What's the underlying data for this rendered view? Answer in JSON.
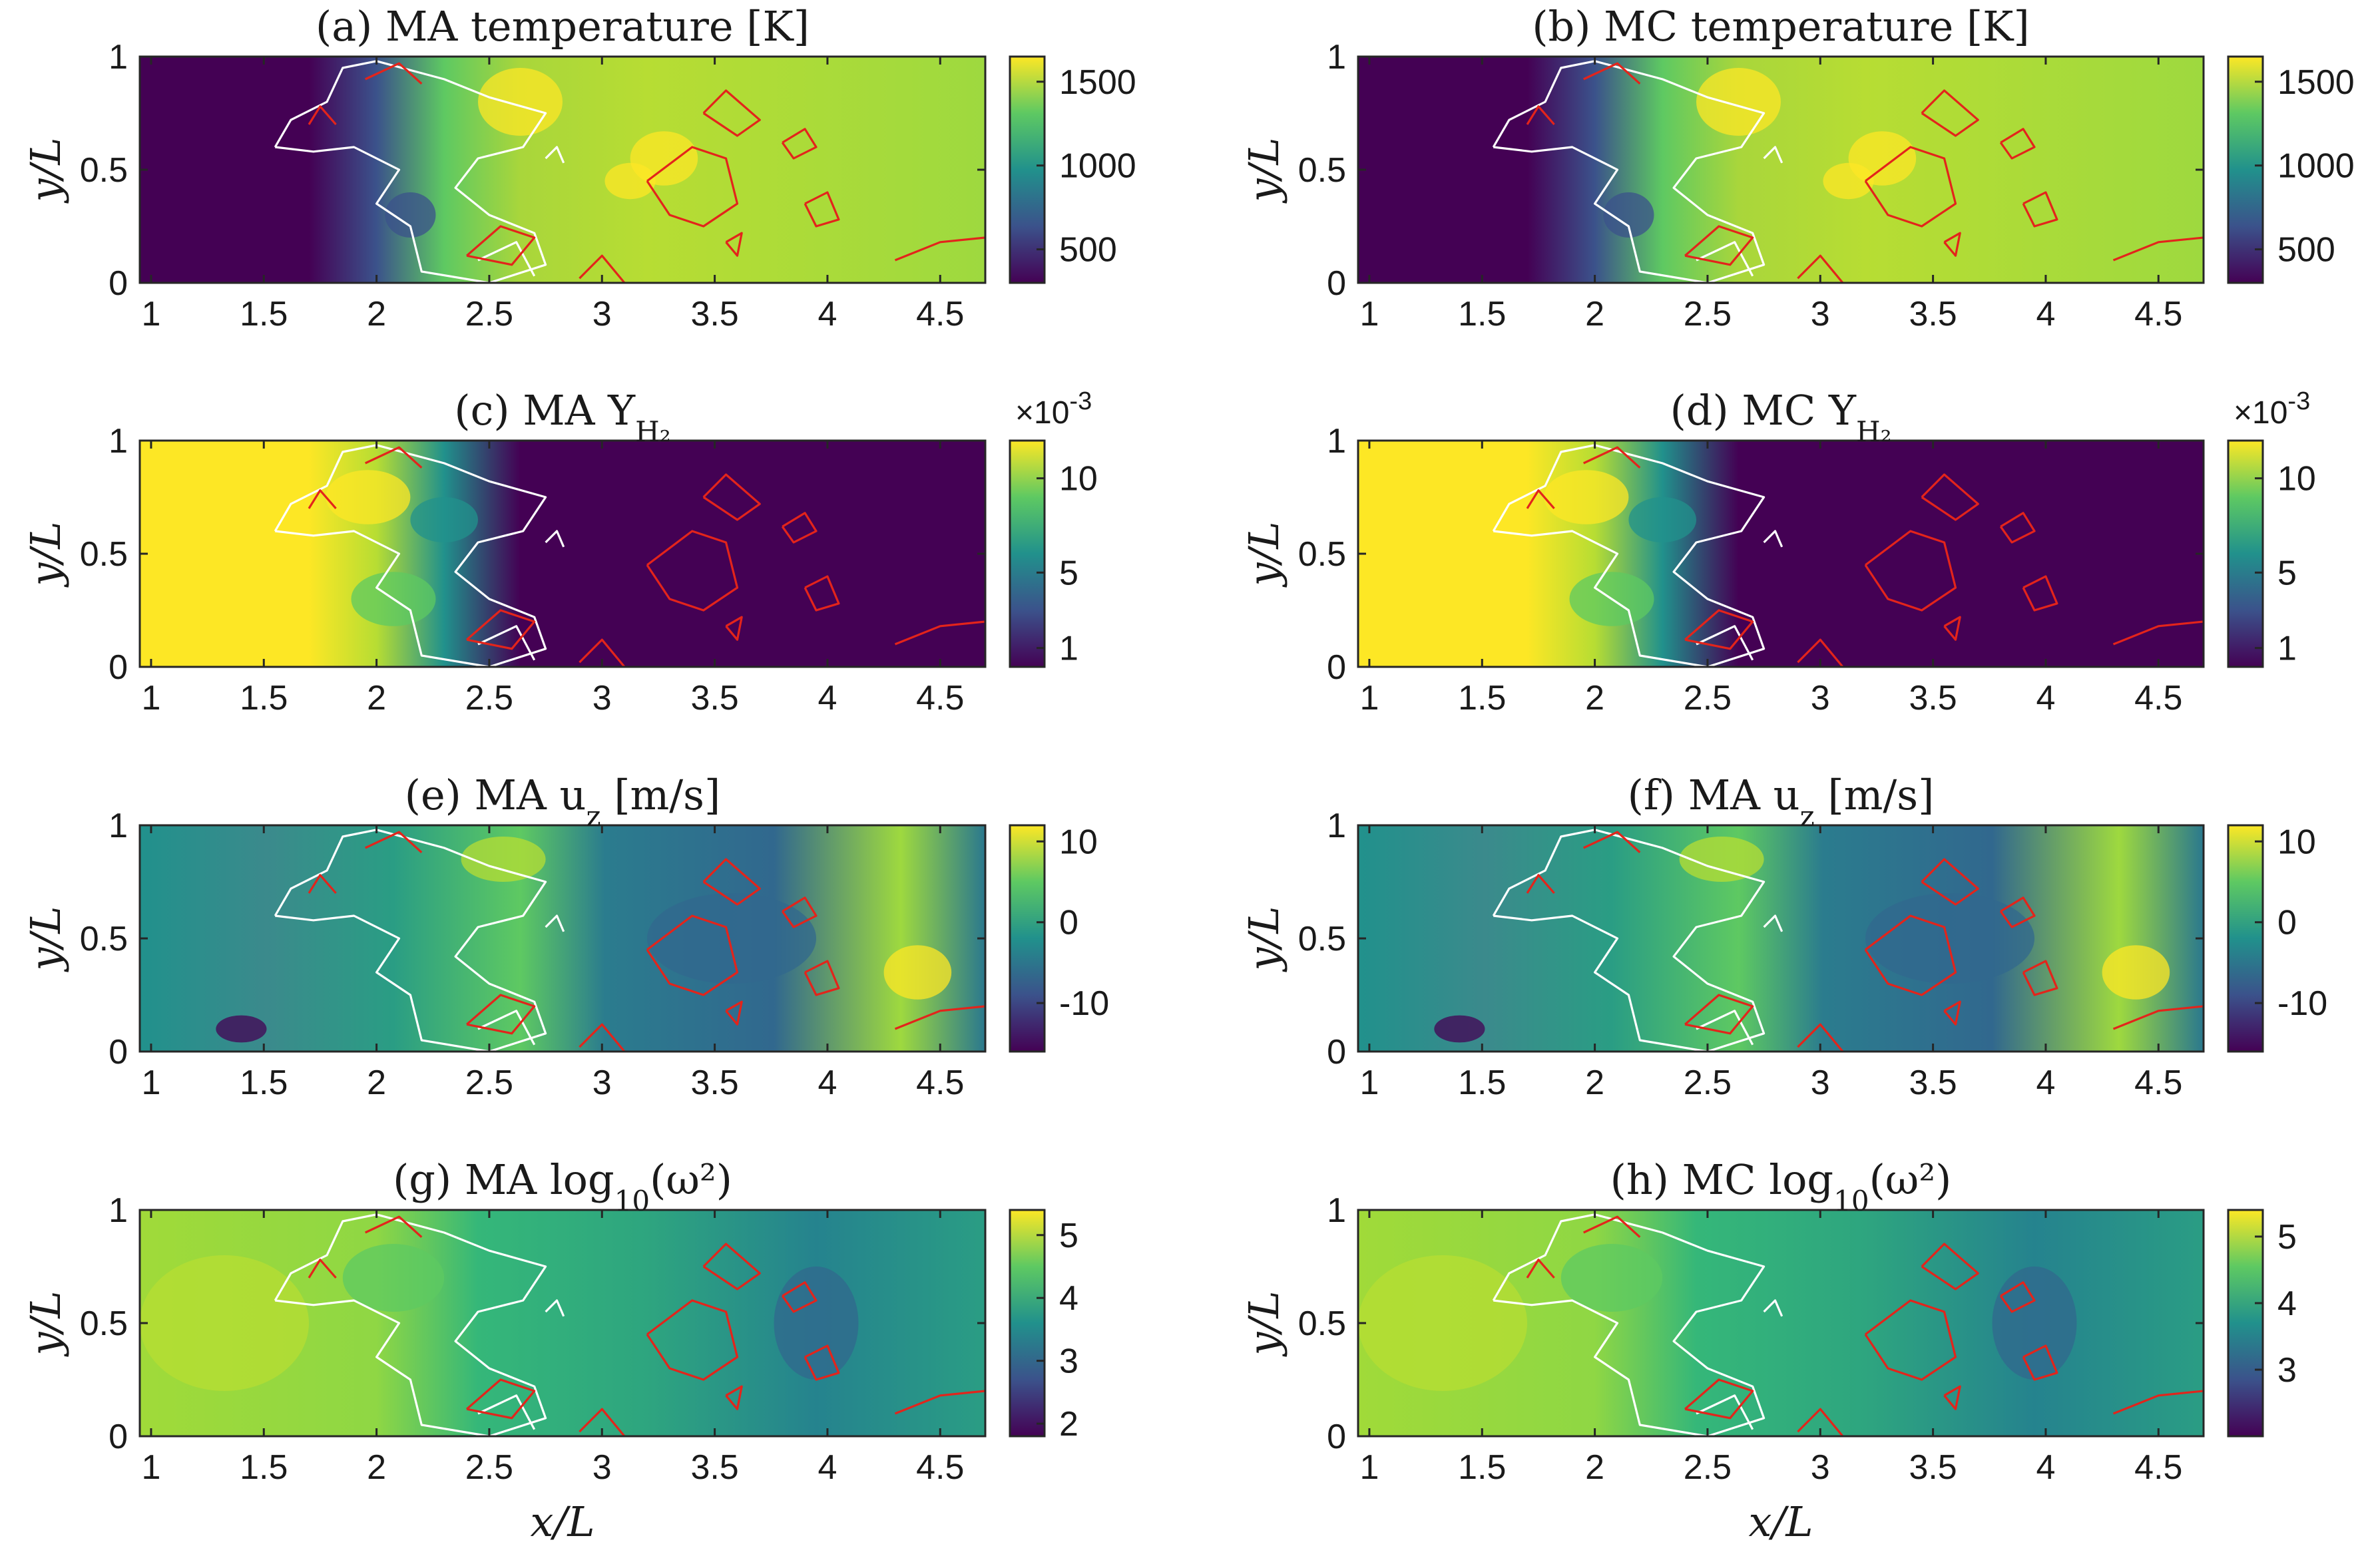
{
  "chart_data": [
    {
      "type": "heatmap",
      "panel": "a",
      "title": "(a) MA temperature [K]",
      "field": "temperature",
      "xlabel": "",
      "ylabel": "y/L",
      "xlim": [
        0.95,
        4.7
      ],
      "ylim": [
        0,
        1
      ],
      "xticks": [
        "1",
        "1.5",
        "2",
        "2.5",
        "3",
        "3.5",
        "4",
        "4.5"
      ],
      "yticks": [
        "0",
        "0.5",
        "1"
      ],
      "colorbar": {
        "ticks": [
          "500",
          "1000",
          "1500"
        ],
        "tick_values": [
          500,
          1000,
          1500
        ],
        "range": [
          300,
          1650
        ],
        "multiplier": ""
      },
      "colormap": [
        "#440154",
        "#3b528b",
        "#21918c",
        "#5ec962",
        "#fde725"
      ]
    },
    {
      "type": "heatmap",
      "panel": "b",
      "title": "(b) MC temperature [K]",
      "field": "temperature",
      "xlabel": "",
      "ylabel": "y/L",
      "xlim": [
        0.95,
        4.7
      ],
      "ylim": [
        0,
        1
      ],
      "xticks": [
        "1",
        "1.5",
        "2",
        "2.5",
        "3",
        "3.5",
        "4",
        "4.5"
      ],
      "yticks": [
        "0",
        "0.5",
        "1"
      ],
      "colorbar": {
        "ticks": [
          "500",
          "1000",
          "1500"
        ],
        "tick_values": [
          500,
          1000,
          1500
        ],
        "range": [
          300,
          1650
        ],
        "multiplier": ""
      },
      "colormap": [
        "#440154",
        "#3b528b",
        "#21918c",
        "#5ec962",
        "#fde725"
      ]
    },
    {
      "type": "heatmap",
      "panel": "c",
      "title": "(c) MA Y",
      "title_sub": "H₂",
      "field": "Y_H2",
      "xlabel": "",
      "ylabel": "y/L",
      "xlim": [
        0.95,
        4.7
      ],
      "ylim": [
        0,
        1
      ],
      "xticks": [
        "1",
        "1.5",
        "2",
        "2.5",
        "3",
        "3.5",
        "4",
        "4.5"
      ],
      "yticks": [
        "0",
        "0.5",
        "1"
      ],
      "colorbar": {
        "ticks": [
          "1",
          "5",
          "10"
        ],
        "tick_values": [
          1,
          5,
          10
        ],
        "range": [
          0,
          12
        ],
        "multiplier": "×10-3"
      },
      "colormap": [
        "#440154",
        "#3b528b",
        "#21918c",
        "#5ec962",
        "#fde725"
      ]
    },
    {
      "type": "heatmap",
      "panel": "d",
      "title": "(d) MC Y",
      "title_sub": "H₂",
      "field": "Y_H2",
      "xlabel": "",
      "ylabel": "y/L",
      "xlim": [
        0.95,
        4.7
      ],
      "ylim": [
        0,
        1
      ],
      "xticks": [
        "1",
        "1.5",
        "2",
        "2.5",
        "3",
        "3.5",
        "4",
        "4.5"
      ],
      "yticks": [
        "0",
        "0.5",
        "1"
      ],
      "colorbar": {
        "ticks": [
          "1",
          "5",
          "10"
        ],
        "tick_values": [
          1,
          5,
          10
        ],
        "range": [
          0,
          12
        ],
        "multiplier": "×10-3"
      },
      "colormap": [
        "#440154",
        "#3b528b",
        "#21918c",
        "#5ec962",
        "#fde725"
      ]
    },
    {
      "type": "heatmap",
      "panel": "e",
      "title": "(e) MA u",
      "title_sub": "z",
      "title_tail": " [m/s]",
      "field": "u_z",
      "xlabel": "",
      "ylabel": "y/L",
      "xlim": [
        0.95,
        4.7
      ],
      "ylim": [
        0,
        1
      ],
      "xticks": [
        "1",
        "1.5",
        "2",
        "2.5",
        "3",
        "3.5",
        "4",
        "4.5"
      ],
      "yticks": [
        "0",
        "0.5",
        "1"
      ],
      "colorbar": {
        "ticks": [
          "-10",
          "0",
          "10"
        ],
        "tick_values": [
          -10,
          0,
          10
        ],
        "range": [
          -16,
          12
        ],
        "multiplier": ""
      },
      "colormap": [
        "#440154",
        "#3b528b",
        "#21918c",
        "#5ec962",
        "#fde725"
      ]
    },
    {
      "type": "heatmap",
      "panel": "f",
      "title": "(f) MA u",
      "title_sub": "z",
      "title_tail": " [m/s]",
      "field": "u_z",
      "xlabel": "",
      "ylabel": "y/L",
      "xlim": [
        0.95,
        4.7
      ],
      "ylim": [
        0,
        1
      ],
      "xticks": [
        "1",
        "1.5",
        "2",
        "2.5",
        "3",
        "3.5",
        "4",
        "4.5"
      ],
      "yticks": [
        "0",
        "0.5",
        "1"
      ],
      "colorbar": {
        "ticks": [
          "-10",
          "0",
          "10"
        ],
        "tick_values": [
          -10,
          0,
          10
        ],
        "range": [
          -16,
          12
        ],
        "multiplier": ""
      },
      "colormap": [
        "#440154",
        "#3b528b",
        "#21918c",
        "#5ec962",
        "#fde725"
      ]
    },
    {
      "type": "heatmap",
      "panel": "g",
      "title": "(g) MA log",
      "title_sub": "10",
      "title_tail": "(ω²)",
      "field": "log10_vorticity_sq",
      "xlabel": "x/L",
      "ylabel": "y/L",
      "xlim": [
        0.95,
        4.7
      ],
      "ylim": [
        0,
        1
      ],
      "xticks": [
        "1",
        "1.5",
        "2",
        "2.5",
        "3",
        "3.5",
        "4",
        "4.5"
      ],
      "yticks": [
        "0",
        "0.5",
        "1"
      ],
      "colorbar": {
        "ticks": [
          "2",
          "3",
          "4",
          "5"
        ],
        "tick_values": [
          2,
          3,
          4,
          5
        ],
        "range": [
          1.8,
          5.4
        ],
        "multiplier": ""
      },
      "colormap": [
        "#440154",
        "#3b528b",
        "#21918c",
        "#5ec962",
        "#fde725"
      ]
    },
    {
      "type": "heatmap",
      "panel": "h",
      "title": "(h) MC log",
      "title_sub": "10",
      "title_tail": "(ω²)",
      "field": "log10_vorticity_sq",
      "xlabel": "x/L",
      "ylabel": "y/L",
      "xlim": [
        0.95,
        4.7
      ],
      "ylim": [
        0,
        1
      ],
      "xticks": [
        "1",
        "1.5",
        "2",
        "2.5",
        "3",
        "3.5",
        "4",
        "4.5"
      ],
      "yticks": [
        "0",
        "0.5",
        "1"
      ],
      "colorbar": {
        "ticks": [
          "3",
          "4",
          "5"
        ],
        "tick_values": [
          3,
          4,
          5
        ],
        "range": [
          2,
          5.4
        ],
        "multiplier": ""
      },
      "colormap": [
        "#440154",
        "#3b528b",
        "#21918c",
        "#5ec962",
        "#fde725"
      ]
    }
  ],
  "contours": {
    "white": [
      [
        [
          1.55,
          0.6
        ],
        [
          1.62,
          0.72
        ],
        [
          1.78,
          0.8
        ],
        [
          1.85,
          0.95
        ],
        [
          2.0,
          0.98
        ],
        [
          2.3,
          0.9
        ],
        [
          2.5,
          0.82
        ],
        [
          2.75,
          0.75
        ],
        [
          2.65,
          0.6
        ],
        [
          2.45,
          0.55
        ],
        [
          2.35,
          0.42
        ],
        [
          2.5,
          0.3
        ],
        [
          2.7,
          0.22
        ],
        [
          2.75,
          0.08
        ],
        [
          2.5,
          0.0
        ],
        [
          2.2,
          0.05
        ],
        [
          2.15,
          0.25
        ],
        [
          2.0,
          0.35
        ],
        [
          2.1,
          0.5
        ],
        [
          1.9,
          0.6
        ],
        [
          1.72,
          0.58
        ],
        [
          1.55,
          0.6
        ]
      ],
      [
        [
          2.45,
          0.1
        ],
        [
          2.62,
          0.18
        ],
        [
          2.7,
          0.03
        ]
      ],
      [
        [
          2.75,
          0.55
        ],
        [
          2.8,
          0.6
        ],
        [
          2.83,
          0.53
        ]
      ]
    ],
    "red": [
      [
        [
          3.2,
          0.45
        ],
        [
          3.4,
          0.6
        ],
        [
          3.55,
          0.55
        ],
        [
          3.6,
          0.35
        ],
        [
          3.45,
          0.25
        ],
        [
          3.3,
          0.3
        ],
        [
          3.2,
          0.45
        ]
      ],
      [
        [
          3.45,
          0.75
        ],
        [
          3.55,
          0.85
        ],
        [
          3.7,
          0.72
        ],
        [
          3.6,
          0.65
        ],
        [
          3.45,
          0.75
        ]
      ],
      [
        [
          3.8,
          0.62
        ],
        [
          3.9,
          0.68
        ],
        [
          3.95,
          0.6
        ],
        [
          3.85,
          0.55
        ],
        [
          3.8,
          0.62
        ]
      ],
      [
        [
          3.9,
          0.35
        ],
        [
          4.0,
          0.4
        ],
        [
          4.05,
          0.28
        ],
        [
          3.95,
          0.25
        ],
        [
          3.9,
          0.35
        ]
      ],
      [
        [
          4.3,
          0.1
        ],
        [
          4.5,
          0.18
        ],
        [
          4.7,
          0.2
        ]
      ],
      [
        [
          2.9,
          0.02
        ],
        [
          3.0,
          0.12
        ],
        [
          3.1,
          0.0
        ]
      ],
      [
        [
          2.4,
          0.12
        ],
        [
          2.55,
          0.25
        ],
        [
          2.7,
          0.2
        ],
        [
          2.6,
          0.08
        ],
        [
          2.4,
          0.12
        ]
      ],
      [
        [
          1.95,
          0.9
        ],
        [
          2.1,
          0.97
        ],
        [
          2.2,
          0.88
        ]
      ],
      [
        [
          1.7,
          0.7
        ],
        [
          1.75,
          0.78
        ],
        [
          1.82,
          0.7
        ]
      ],
      [
        [
          3.55,
          0.18
        ],
        [
          3.62,
          0.22
        ],
        [
          3.6,
          0.12
        ],
        [
          3.55,
          0.18
        ]
      ]
    ]
  }
}
